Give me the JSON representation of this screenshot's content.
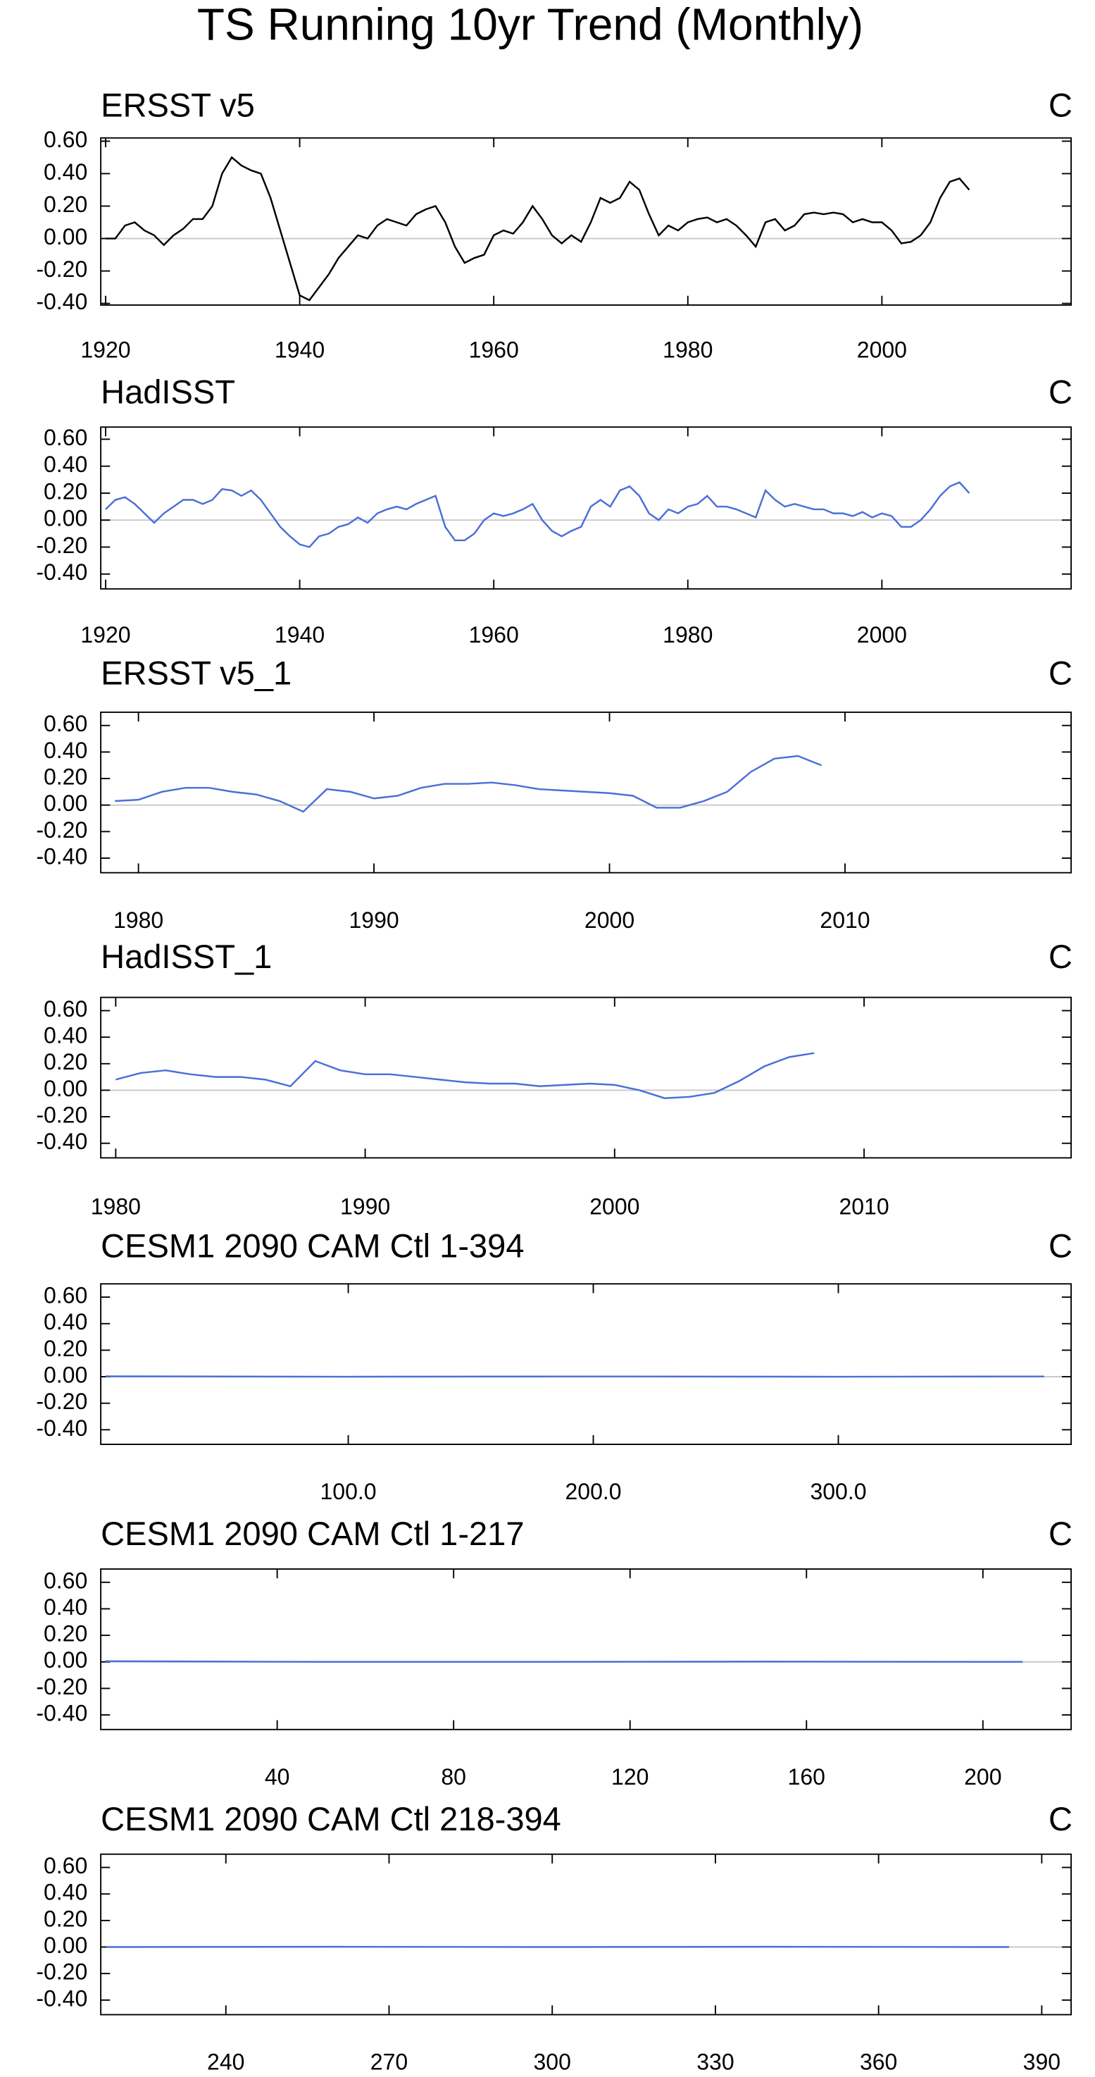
{
  "title": "TS Running 10yr Trend (Monthly)",
  "chart_data": [
    {
      "type": "line",
      "title": "ERSST v5",
      "unit": "C",
      "x": [
        1920,
        1921,
        1922,
        1923,
        1924,
        1925,
        1926,
        1927,
        1928,
        1929,
        1930,
        1931,
        1932,
        1933,
        1934,
        1935,
        1936,
        1937,
        1938,
        1939,
        1940,
        1941,
        1942,
        1943,
        1944,
        1945,
        1946,
        1947,
        1948,
        1949,
        1950,
        1951,
        1952,
        1953,
        1954,
        1955,
        1956,
        1957,
        1958,
        1959,
        1960,
        1961,
        1962,
        1963,
        1964,
        1965,
        1966,
        1967,
        1968,
        1969,
        1970,
        1971,
        1972,
        1973,
        1974,
        1975,
        1976,
        1977,
        1978,
        1979,
        1980,
        1981,
        1982,
        1983,
        1984,
        1985,
        1986,
        1987,
        1988,
        1989,
        1990,
        1991,
        1992,
        1993,
        1994,
        1995,
        1996,
        1997,
        1998,
        1999,
        2000,
        2001,
        2002,
        2003,
        2004,
        2005,
        2006,
        2007,
        2008,
        2009
      ],
      "series": [
        {
          "color": "#000000",
          "values": [
            0.0,
            0.0,
            0.08,
            0.1,
            0.05,
            0.02,
            -0.04,
            0.02,
            0.06,
            0.12,
            0.12,
            0.2,
            0.4,
            0.5,
            0.45,
            0.42,
            0.4,
            0.25,
            0.05,
            -0.15,
            -0.35,
            -0.38,
            -0.3,
            -0.22,
            -0.12,
            -0.05,
            0.02,
            0.0,
            0.08,
            0.12,
            0.1,
            0.08,
            0.15,
            0.18,
            0.2,
            0.1,
            -0.05,
            -0.15,
            -0.12,
            -0.1,
            0.02,
            0.05,
            0.03,
            0.1,
            0.2,
            0.12,
            0.02,
            -0.03,
            0.02,
            -0.02,
            0.1,
            0.25,
            0.22,
            0.25,
            0.35,
            0.3,
            0.15,
            0.02,
            0.08,
            0.05,
            0.1,
            0.12,
            0.13,
            0.1,
            0.12,
            0.08,
            0.02,
            -0.05,
            0.1,
            0.12,
            0.05,
            0.08,
            0.15,
            0.16,
            0.15,
            0.16,
            0.15,
            0.1,
            0.12,
            0.1,
            0.1,
            0.05,
            -0.03,
            -0.02,
            0.02,
            0.1,
            0.25,
            0.35,
            0.37,
            0.3
          ]
        }
      ],
      "xlim": [
        1919.5,
        2019.5
      ],
      "ylim": [
        -0.41,
        0.62
      ],
      "xticks": [
        1920,
        1940,
        1960,
        1980,
        2000
      ],
      "yticks": [
        {
          "value": 0.6,
          "label": "0.60"
        },
        {
          "value": 0.4,
          "label": "0.40"
        },
        {
          "value": 0.2,
          "label": "0.20"
        },
        {
          "value": 0,
          "label": "0.00"
        },
        {
          "value": -0.2,
          "label": "-0.20"
        },
        {
          "value": -0.4,
          "label": "-0.40"
        }
      ],
      "ref_line": 0
    },
    {
      "type": "line",
      "title": "HadISST",
      "unit": "C",
      "x": [
        1920,
        1921,
        1922,
        1923,
        1924,
        1925,
        1926,
        1927,
        1928,
        1929,
        1930,
        1931,
        1932,
        1933,
        1934,
        1935,
        1936,
        1937,
        1938,
        1939,
        1940,
        1941,
        1942,
        1943,
        1944,
        1945,
        1946,
        1947,
        1948,
        1949,
        1950,
        1951,
        1952,
        1953,
        1954,
        1955,
        1956,
        1957,
        1958,
        1959,
        1960,
        1961,
        1962,
        1963,
        1964,
        1965,
        1966,
        1967,
        1968,
        1969,
        1970,
        1971,
        1972,
        1973,
        1974,
        1975,
        1976,
        1977,
        1978,
        1979,
        1980,
        1981,
        1982,
        1983,
        1984,
        1985,
        1986,
        1987,
        1988,
        1989,
        1990,
        1991,
        1992,
        1993,
        1994,
        1995,
        1996,
        1997,
        1998,
        1999,
        2000,
        2001,
        2002,
        2003,
        2004,
        2005,
        2006,
        2007,
        2008,
        2009
      ],
      "series": [
        {
          "color": "#4a6fd8",
          "values": [
            0.08,
            0.15,
            0.17,
            0.12,
            0.05,
            -0.02,
            0.05,
            0.1,
            0.15,
            0.15,
            0.12,
            0.15,
            0.23,
            0.22,
            0.18,
            0.22,
            0.15,
            0.05,
            -0.05,
            -0.12,
            -0.18,
            -0.2,
            -0.12,
            -0.1,
            -0.05,
            -0.03,
            0.02,
            -0.02,
            0.05,
            0.08,
            0.1,
            0.08,
            0.12,
            0.15,
            0.18,
            -0.05,
            -0.15,
            -0.15,
            -0.1,
            0.0,
            0.05,
            0.03,
            0.05,
            0.08,
            0.12,
            0.0,
            -0.08,
            -0.12,
            -0.08,
            -0.05,
            0.1,
            0.15,
            0.1,
            0.22,
            0.25,
            0.18,
            0.05,
            0.0,
            0.08,
            0.05,
            0.1,
            0.12,
            0.18,
            0.1,
            0.1,
            0.08,
            0.05,
            0.02,
            0.22,
            0.15,
            0.1,
            0.12,
            0.1,
            0.08,
            0.08,
            0.05,
            0.05,
            0.03,
            0.06,
            0.02,
            0.05,
            0.03,
            -0.05,
            -0.05,
            0.0,
            0.08,
            0.18,
            0.25,
            0.28,
            0.2
          ]
        }
      ],
      "xlim": [
        1919.5,
        2019.5
      ],
      "ylim": [
        -0.51,
        0.69
      ],
      "xticks": [
        1920,
        1940,
        1960,
        1980,
        2000
      ],
      "yticks": [
        {
          "value": 0.6,
          "label": "0.60"
        },
        {
          "value": 0.4,
          "label": "0.40"
        },
        {
          "value": 0.2,
          "label": "0.20"
        },
        {
          "value": 0,
          "label": "0.00"
        },
        {
          "value": -0.2,
          "label": "-0.20"
        },
        {
          "value": -0.4,
          "label": "-0.40"
        }
      ],
      "ref_line": 0
    },
    {
      "type": "line",
      "title": "ERSST v5_1",
      "unit": "C",
      "x": [
        1979,
        1980,
        1981,
        1982,
        1983,
        1984,
        1985,
        1986,
        1987,
        1988,
        1989,
        1990,
        1991,
        1992,
        1993,
        1994,
        1995,
        1996,
        1997,
        1998,
        1999,
        2000,
        2001,
        2002,
        2003,
        2004,
        2005,
        2006,
        2007,
        2008,
        2009
      ],
      "series": [
        {
          "color": "#4a6fd8",
          "values": [
            0.03,
            0.04,
            0.1,
            0.13,
            0.13,
            0.1,
            0.08,
            0.03,
            -0.05,
            0.12,
            0.1,
            0.05,
            0.07,
            0.13,
            0.16,
            0.16,
            0.17,
            0.15,
            0.12,
            0.11,
            0.1,
            0.09,
            0.07,
            -0.02,
            -0.02,
            0.03,
            0.1,
            0.25,
            0.35,
            0.37,
            0.3
          ]
        }
      ],
      "xlim": [
        1978.4,
        2019.6
      ],
      "ylim": [
        -0.51,
        0.7
      ],
      "xticks": [
        1980,
        1990,
        2000,
        2010
      ],
      "yticks": [
        {
          "value": 0.6,
          "label": "0.60"
        },
        {
          "value": 0.4,
          "label": "0.40"
        },
        {
          "value": 0.2,
          "label": "0.20"
        },
        {
          "value": 0,
          "label": "0.00"
        },
        {
          "value": -0.2,
          "label": "-0.20"
        },
        {
          "value": -0.4,
          "label": "-0.40"
        }
      ],
      "ref_line": 0
    },
    {
      "type": "line",
      "title": "HadISST_1",
      "unit": "C",
      "x": [
        1980,
        1981,
        1982,
        1983,
        1984,
        1985,
        1986,
        1987,
        1988,
        1989,
        1990,
        1991,
        1992,
        1993,
        1994,
        1995,
        1996,
        1997,
        1998,
        1999,
        2000,
        2001,
        2002,
        2003,
        2004,
        2005,
        2006,
        2007,
        2008
      ],
      "series": [
        {
          "color": "#4a6fd8",
          "values": [
            0.08,
            0.13,
            0.15,
            0.12,
            0.1,
            0.1,
            0.08,
            0.03,
            0.22,
            0.15,
            0.12,
            0.12,
            0.1,
            0.08,
            0.06,
            0.05,
            0.05,
            0.03,
            0.04,
            0.05,
            0.04,
            0.0,
            -0.06,
            -0.05,
            -0.02,
            0.07,
            0.18,
            0.25,
            0.28
          ]
        }
      ],
      "xlim": [
        1979.4,
        2018.3
      ],
      "ylim": [
        -0.51,
        0.7
      ],
      "xticks": [
        1980,
        1990,
        2000,
        2010
      ],
      "yticks": [
        {
          "value": 0.6,
          "label": "0.60"
        },
        {
          "value": 0.4,
          "label": "0.40"
        },
        {
          "value": 0.2,
          "label": "0.20"
        },
        {
          "value": 0,
          "label": "0.00"
        },
        {
          "value": -0.2,
          "label": "-0.20"
        },
        {
          "value": -0.4,
          "label": "-0.40"
        }
      ],
      "ref_line": 0
    },
    {
      "type": "line",
      "title": "CESM1 2090 CAM Ctl 1-394",
      "unit": "C",
      "x": [
        1,
        100,
        200,
        300,
        384
      ],
      "series": [
        {
          "color": "#4a6fd8",
          "values": [
            0.003,
            0.0,
            0.002,
            0.0,
            0.002
          ]
        }
      ],
      "xlim": [
        -1,
        395
      ],
      "ylim": [
        -0.51,
        0.7
      ],
      "xticks": [
        {
          "value": 100,
          "label": "100.0"
        },
        {
          "value": 200,
          "label": "200.0"
        },
        {
          "value": 300,
          "label": "300.0"
        }
      ],
      "yticks": [
        {
          "value": 0.6,
          "label": "0.60"
        },
        {
          "value": 0.4,
          "label": "0.40"
        },
        {
          "value": 0.2,
          "label": "0.20"
        },
        {
          "value": 0,
          "label": "0.00"
        },
        {
          "value": -0.2,
          "label": "-0.20"
        },
        {
          "value": -0.4,
          "label": "-0.40"
        }
      ],
      "ref_line": 0
    },
    {
      "type": "line",
      "title": "CESM1 2090 CAM Ctl 1-217",
      "unit": "C",
      "x": [
        1,
        50,
        100,
        150,
        209
      ],
      "series": [
        {
          "color": "#4a6fd8",
          "values": [
            0.005,
            0.0,
            0.0,
            0.002,
            0.0
          ]
        }
      ],
      "xlim": [
        0,
        220
      ],
      "ylim": [
        -0.51,
        0.7
      ],
      "xticks": [
        40,
        80,
        120,
        160,
        200
      ],
      "yticks": [
        {
          "value": 0.6,
          "label": "0.60"
        },
        {
          "value": 0.4,
          "label": "0.40"
        },
        {
          "value": 0.2,
          "label": "0.20"
        },
        {
          "value": 0,
          "label": "0.00"
        },
        {
          "value": -0.2,
          "label": "-0.20"
        },
        {
          "value": -0.4,
          "label": "-0.40"
        }
      ],
      "ref_line": 0
    },
    {
      "type": "line",
      "title": "CESM1 2090 CAM Ctl 218-394",
      "unit": "C",
      "x": [
        218,
        260,
        300,
        340,
        384
      ],
      "series": [
        {
          "color": "#4a6fd8",
          "values": [
            0.0,
            0.002,
            0.0,
            0.002,
            0.0
          ]
        }
      ],
      "xlim": [
        217,
        395.4
      ],
      "ylim": [
        -0.51,
        0.7
      ],
      "xticks": [
        240,
        270,
        300,
        330,
        360,
        390
      ],
      "yticks": [
        {
          "value": 0.6,
          "label": "0.60"
        },
        {
          "value": 0.4,
          "label": "0.40"
        },
        {
          "value": 0.2,
          "label": "0.20"
        },
        {
          "value": 0,
          "label": "0.00"
        },
        {
          "value": -0.2,
          "label": "-0.20"
        },
        {
          "value": -0.4,
          "label": "-0.40"
        }
      ],
      "ref_line": 0
    }
  ]
}
